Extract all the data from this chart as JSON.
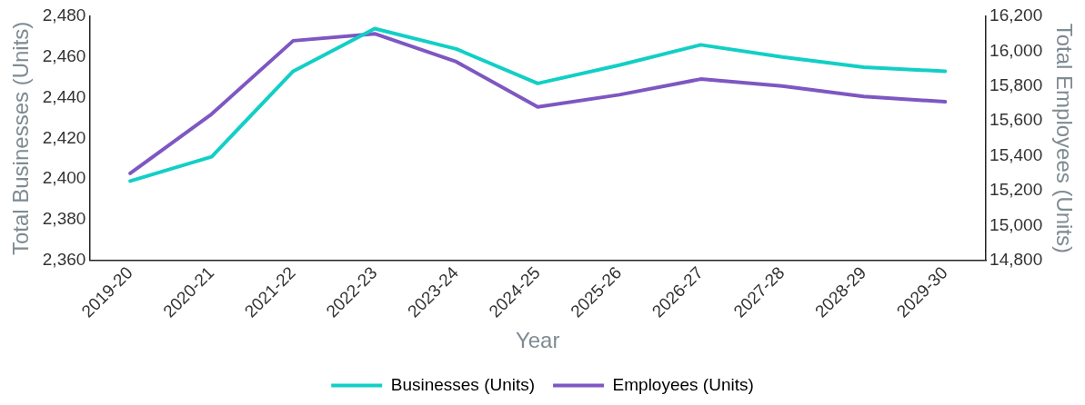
{
  "chart_data": {
    "type": "line",
    "xlabel": "Year",
    "ylabel": "Total Businesses (Units)",
    "y2label": "Total Employees (Units)",
    "categories": [
      "2019-20",
      "2020-21",
      "2021-22",
      "2022-23",
      "2023-24",
      "2024-25",
      "2025-26",
      "2026-27",
      "2027-28",
      "2028-29",
      "2029-30"
    ],
    "series": [
      {
        "name": "Businesses (Units)",
        "color": "#12cfc6",
        "values": [
          2399,
          2411,
          2453,
          2474,
          2464,
          2447,
          2456,
          2466,
          2460,
          2455,
          2453
        ]
      },
      {
        "name": "Employees (Units)",
        "color": "#7e57c2",
        "axis": "y2",
        "values": [
          15300,
          15640,
          16060,
          16100,
          15940,
          15680,
          15750,
          15840,
          15800,
          15740,
          15710
        ]
      }
    ],
    "ylim": [
      2360,
      2480
    ],
    "yticks": [
      {
        "value": 2360,
        "label": "2,360"
      },
      {
        "value": 2380,
        "label": "2,380"
      },
      {
        "value": 2400,
        "label": "2,400"
      },
      {
        "value": 2420,
        "label": "2,420"
      },
      {
        "value": 2440,
        "label": "2,440"
      },
      {
        "value": 2460,
        "label": "2,460"
      },
      {
        "value": 2480,
        "label": "2,480"
      }
    ],
    "y2lim": [
      14800,
      16200
    ],
    "y2ticks": [
      {
        "value": 14800,
        "label": "14,800"
      },
      {
        "value": 15000,
        "label": "15,000"
      },
      {
        "value": 15200,
        "label": "15,200"
      },
      {
        "value": 15400,
        "label": "15,400"
      },
      {
        "value": 15600,
        "label": "15,600"
      },
      {
        "value": 15800,
        "label": "15,800"
      },
      {
        "value": 16000,
        "label": "16,000"
      },
      {
        "value": 16200,
        "label": "16,200"
      }
    ],
    "grid": false,
    "legend": "bottom",
    "marker": "none",
    "line_style": "solid"
  }
}
